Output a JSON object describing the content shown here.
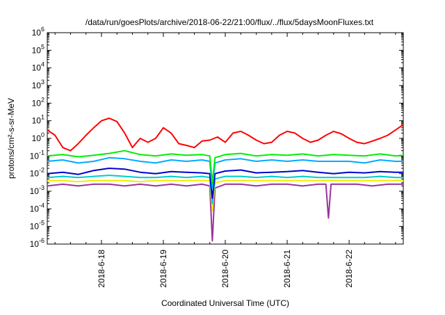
{
  "title": "/data/run/goesPlots/archive/2018-06-22/21:00/flux/../flux/5daysMoonFluxes.txt",
  "chart_data": {
    "type": "line",
    "title": "/data/run/goesPlots/archive/2018-06-22/21:00/flux/../flux/5daysMoonFluxes.txt",
    "xlabel": "Coordinated Universal Time (UTC)",
    "ylabel": "protons/cm²-s-sr-MeV",
    "y_scale": "log",
    "ylim": [
      1e-06,
      1000000.0
    ],
    "x_range_days": [
      "2018-06-17 03:00",
      "2018-06-22 21:00"
    ],
    "x_ticks": [
      "2018-6-18",
      "2018-6-19",
      "2018-6-20",
      "2018-6-21",
      "2018-6-22"
    ],
    "y_ticks": [
      {
        "base": "10",
        "exp": "-6"
      },
      {
        "base": "10",
        "exp": "-5"
      },
      {
        "base": "10",
        "exp": "-4"
      },
      {
        "base": "10",
        "exp": "-3"
      },
      {
        "base": "10",
        "exp": "-2"
      },
      {
        "base": "10",
        "exp": "-1"
      },
      {
        "base": "10",
        "exp": "0"
      },
      {
        "base": "10",
        "exp": "1"
      },
      {
        "base": "10",
        "exp": "2"
      },
      {
        "base": "10",
        "exp": "3"
      },
      {
        "base": "10",
        "exp": "4"
      },
      {
        "base": "10",
        "exp": "5"
      },
      {
        "base": "10",
        "exp": "6"
      }
    ],
    "grid": false,
    "legend": "none",
    "series": [
      {
        "color": "#ff0000",
        "x": [
          "2018-06-17 03:00",
          "2018-06-17 06:00",
          "2018-06-17 09:00",
          "2018-06-17 12:00",
          "2018-06-17 15:00",
          "2018-06-17 18:00",
          "2018-06-17 21:00",
          "2018-06-18 00:00",
          "2018-06-18 03:00",
          "2018-06-18 06:00",
          "2018-06-18 09:00",
          "2018-06-18 12:00",
          "2018-06-18 15:00",
          "2018-06-18 18:00",
          "2018-06-18 21:00",
          "2018-06-19 00:00",
          "2018-06-19 03:00",
          "2018-06-19 06:00",
          "2018-06-19 09:00",
          "2018-06-19 12:00",
          "2018-06-19 15:00",
          "2018-06-19 18:00",
          "2018-06-19 21:00",
          "2018-06-20 00:00",
          "2018-06-20 03:00",
          "2018-06-20 06:00",
          "2018-06-20 09:00",
          "2018-06-20 12:00",
          "2018-06-20 15:00",
          "2018-06-20 18:00",
          "2018-06-20 21:00",
          "2018-06-21 00:00",
          "2018-06-21 03:00",
          "2018-06-21 06:00",
          "2018-06-21 09:00",
          "2018-06-21 12:00",
          "2018-06-21 15:00",
          "2018-06-21 18:00",
          "2018-06-21 21:00",
          "2018-06-22 00:00",
          "2018-06-22 03:00",
          "2018-06-22 06:00",
          "2018-06-22 09:00",
          "2018-06-22 12:00",
          "2018-06-22 15:00",
          "2018-06-22 18:00",
          "2018-06-22 21:00"
        ],
        "values": [
          3,
          1.5,
          0.3,
          0.2,
          0.5,
          1.5,
          4,
          10,
          14,
          9,
          2,
          0.3,
          1,
          0.6,
          1,
          4,
          2,
          0.5,
          0.4,
          0.3,
          0.7,
          0.8,
          1.2,
          0.6,
          2,
          2.5,
          1.5,
          0.8,
          0.5,
          0.6,
          1.5,
          2.5,
          2,
          1,
          0.6,
          0.8,
          1.5,
          2.5,
          1.8,
          1,
          0.6,
          0.5,
          0.7,
          1,
          1.5,
          3,
          6
        ]
      },
      {
        "color": "#00ee00",
        "x": [
          "2018-06-17 03:00",
          "2018-06-17 09:00",
          "2018-06-17 15:00",
          "2018-06-17 21:00",
          "2018-06-18 03:00",
          "2018-06-18 09:00",
          "2018-06-18 15:00",
          "2018-06-18 21:00",
          "2018-06-19 03:00",
          "2018-06-19 09:00",
          "2018-06-19 15:00",
          "2018-06-19 18:00",
          "2018-06-19 19:00",
          "2018-06-19 20:00",
          "2018-06-20 00:00",
          "2018-06-20 06:00",
          "2018-06-20 12:00",
          "2018-06-20 18:00",
          "2018-06-21 00:00",
          "2018-06-21 06:00",
          "2018-06-21 12:00",
          "2018-06-21 18:00",
          "2018-06-22 00:00",
          "2018-06-22 06:00",
          "2018-06-22 12:00",
          "2018-06-22 18:00",
          "2018-06-22 21:00"
        ],
        "values": [
          0.1,
          0.12,
          0.09,
          0.11,
          0.14,
          0.2,
          0.12,
          0.1,
          0.13,
          0.11,
          0.12,
          0.1,
          0.003,
          0.08,
          0.12,
          0.14,
          0.1,
          0.12,
          0.11,
          0.13,
          0.1,
          0.12,
          0.11,
          0.1,
          0.13,
          0.1,
          0.11
        ]
      },
      {
        "color": "#00aaff",
        "x": [
          "2018-06-17 03:00",
          "2018-06-17 09:00",
          "2018-06-17 15:00",
          "2018-06-17 21:00",
          "2018-06-18 03:00",
          "2018-06-18 09:00",
          "2018-06-18 15:00",
          "2018-06-18 21:00",
          "2018-06-19 03:00",
          "2018-06-19 09:00",
          "2018-06-19 15:00",
          "2018-06-19 18:00",
          "2018-06-19 19:00",
          "2018-06-19 20:00",
          "2018-06-20 00:00",
          "2018-06-20 06:00",
          "2018-06-20 12:00",
          "2018-06-20 18:00",
          "2018-06-21 00:00",
          "2018-06-21 06:00",
          "2018-06-21 12:00",
          "2018-06-21 18:00",
          "2018-06-22 00:00",
          "2018-06-22 06:00",
          "2018-06-22 12:00",
          "2018-06-22 18:00",
          "2018-06-22 21:00"
        ],
        "values": [
          0.05,
          0.06,
          0.04,
          0.05,
          0.08,
          0.07,
          0.05,
          0.04,
          0.06,
          0.05,
          0.06,
          0.05,
          0.0015,
          0.04,
          0.06,
          0.07,
          0.05,
          0.06,
          0.05,
          0.06,
          0.05,
          0.05,
          0.05,
          0.04,
          0.06,
          0.05,
          0.05
        ]
      },
      {
        "color": "#0000cc",
        "x": [
          "2018-06-17 03:00",
          "2018-06-17 09:00",
          "2018-06-17 15:00",
          "2018-06-17 21:00",
          "2018-06-18 03:00",
          "2018-06-18 09:00",
          "2018-06-18 15:00",
          "2018-06-18 21:00",
          "2018-06-19 03:00",
          "2018-06-19 09:00",
          "2018-06-19 15:00",
          "2018-06-19 18:00",
          "2018-06-19 19:00",
          "2018-06-19 20:00",
          "2018-06-20 00:00",
          "2018-06-20 06:00",
          "2018-06-20 12:00",
          "2018-06-20 18:00",
          "2018-06-21 00:00",
          "2018-06-21 06:00",
          "2018-06-21 12:00",
          "2018-06-21 18:00",
          "2018-06-22 00:00",
          "2018-06-22 06:00",
          "2018-06-22 12:00",
          "2018-06-22 18:00",
          "2018-06-22 21:00"
        ],
        "values": [
          0.01,
          0.012,
          0.009,
          0.015,
          0.02,
          0.018,
          0.012,
          0.01,
          0.013,
          0.012,
          0.011,
          0.01,
          0.0004,
          0.01,
          0.014,
          0.016,
          0.011,
          0.012,
          0.013,
          0.015,
          0.012,
          0.01,
          0.012,
          0.011,
          0.013,
          0.012,
          0.012
        ]
      },
      {
        "color": "#00cccc",
        "x": [
          "2018-06-17 03:00",
          "2018-06-17 09:00",
          "2018-06-17 15:00",
          "2018-06-17 21:00",
          "2018-06-18 03:00",
          "2018-06-18 09:00",
          "2018-06-18 15:00",
          "2018-06-18 21:00",
          "2018-06-19 03:00",
          "2018-06-19 09:00",
          "2018-06-19 15:00",
          "2018-06-19 18:00",
          "2018-06-19 19:00",
          "2018-06-19 20:00",
          "2018-06-20 00:00",
          "2018-06-20 06:00",
          "2018-06-20 12:00",
          "2018-06-20 18:00",
          "2018-06-21 00:00",
          "2018-06-21 06:00",
          "2018-06-21 12:00",
          "2018-06-21 18:00",
          "2018-06-22 00:00",
          "2018-06-22 06:00",
          "2018-06-22 12:00",
          "2018-06-22 18:00",
          "2018-06-22 21:00"
        ],
        "values": [
          0.006,
          0.007,
          0.006,
          0.007,
          0.008,
          0.007,
          0.006,
          0.006,
          0.007,
          0.006,
          0.007,
          0.006,
          0.0002,
          0.005,
          0.007,
          0.007,
          0.006,
          0.007,
          0.006,
          0.007,
          0.006,
          0.006,
          0.006,
          0.006,
          0.007,
          0.006,
          0.006
        ]
      },
      {
        "color": "#eeee00",
        "x": [
          "2018-06-17 03:00",
          "2018-06-17 09:00",
          "2018-06-17 15:00",
          "2018-06-17 21:00",
          "2018-06-18 03:00",
          "2018-06-18 09:00",
          "2018-06-18 15:00",
          "2018-06-18 21:00",
          "2018-06-19 03:00",
          "2018-06-19 09:00",
          "2018-06-19 15:00",
          "2018-06-19 18:00",
          "2018-06-19 19:00",
          "2018-06-19 20:00",
          "2018-06-20 00:00",
          "2018-06-20 06:00",
          "2018-06-20 12:00",
          "2018-06-20 18:00",
          "2018-06-21 00:00",
          "2018-06-21 06:00",
          "2018-06-21 12:00",
          "2018-06-21 18:00",
          "2018-06-22 00:00",
          "2018-06-22 06:00",
          "2018-06-22 12:00",
          "2018-06-22 18:00",
          "2018-06-22 21:00"
        ],
        "values": [
          0.004,
          0.004,
          0.0035,
          0.004,
          0.004,
          0.004,
          0.0035,
          0.004,
          0.004,
          0.004,
          0.004,
          0.004,
          8e-05,
          0.003,
          0.004,
          0.004,
          0.004,
          0.004,
          0.004,
          0.004,
          0.004,
          0.004,
          0.004,
          0.004,
          0.004,
          0.004,
          0.004
        ]
      },
      {
        "color": "#993399",
        "x": [
          "2018-06-17 03:00",
          "2018-06-17 09:00",
          "2018-06-17 15:00",
          "2018-06-17 21:00",
          "2018-06-18 03:00",
          "2018-06-18 09:00",
          "2018-06-18 15:00",
          "2018-06-18 21:00",
          "2018-06-19 03:00",
          "2018-06-19 09:00",
          "2018-06-19 15:00",
          "2018-06-19 18:00",
          "2018-06-19 19:00",
          "2018-06-19 20:00",
          "2018-06-20 00:00",
          "2018-06-20 06:00",
          "2018-06-20 12:00",
          "2018-06-20 18:00",
          "2018-06-21 00:00",
          "2018-06-21 06:00",
          "2018-06-21 12:00",
          "2018-06-21 15:00",
          "2018-06-21 16:00",
          "2018-06-21 17:00",
          "2018-06-21 21:00",
          "2018-06-22 03:00",
          "2018-06-22 09:00",
          "2018-06-22 15:00",
          "2018-06-22 21:00"
        ],
        "values": [
          0.002,
          0.0025,
          0.002,
          0.0025,
          0.0025,
          0.002,
          0.0025,
          0.002,
          0.0025,
          0.002,
          0.0025,
          0.002,
          1.5e-06,
          0.0015,
          0.0025,
          0.0025,
          0.002,
          0.0025,
          0.0025,
          0.002,
          0.0025,
          0.0025,
          3e-05,
          0.0025,
          0.0025,
          0.0025,
          0.002,
          0.0025,
          0.0025
        ]
      }
    ]
  }
}
